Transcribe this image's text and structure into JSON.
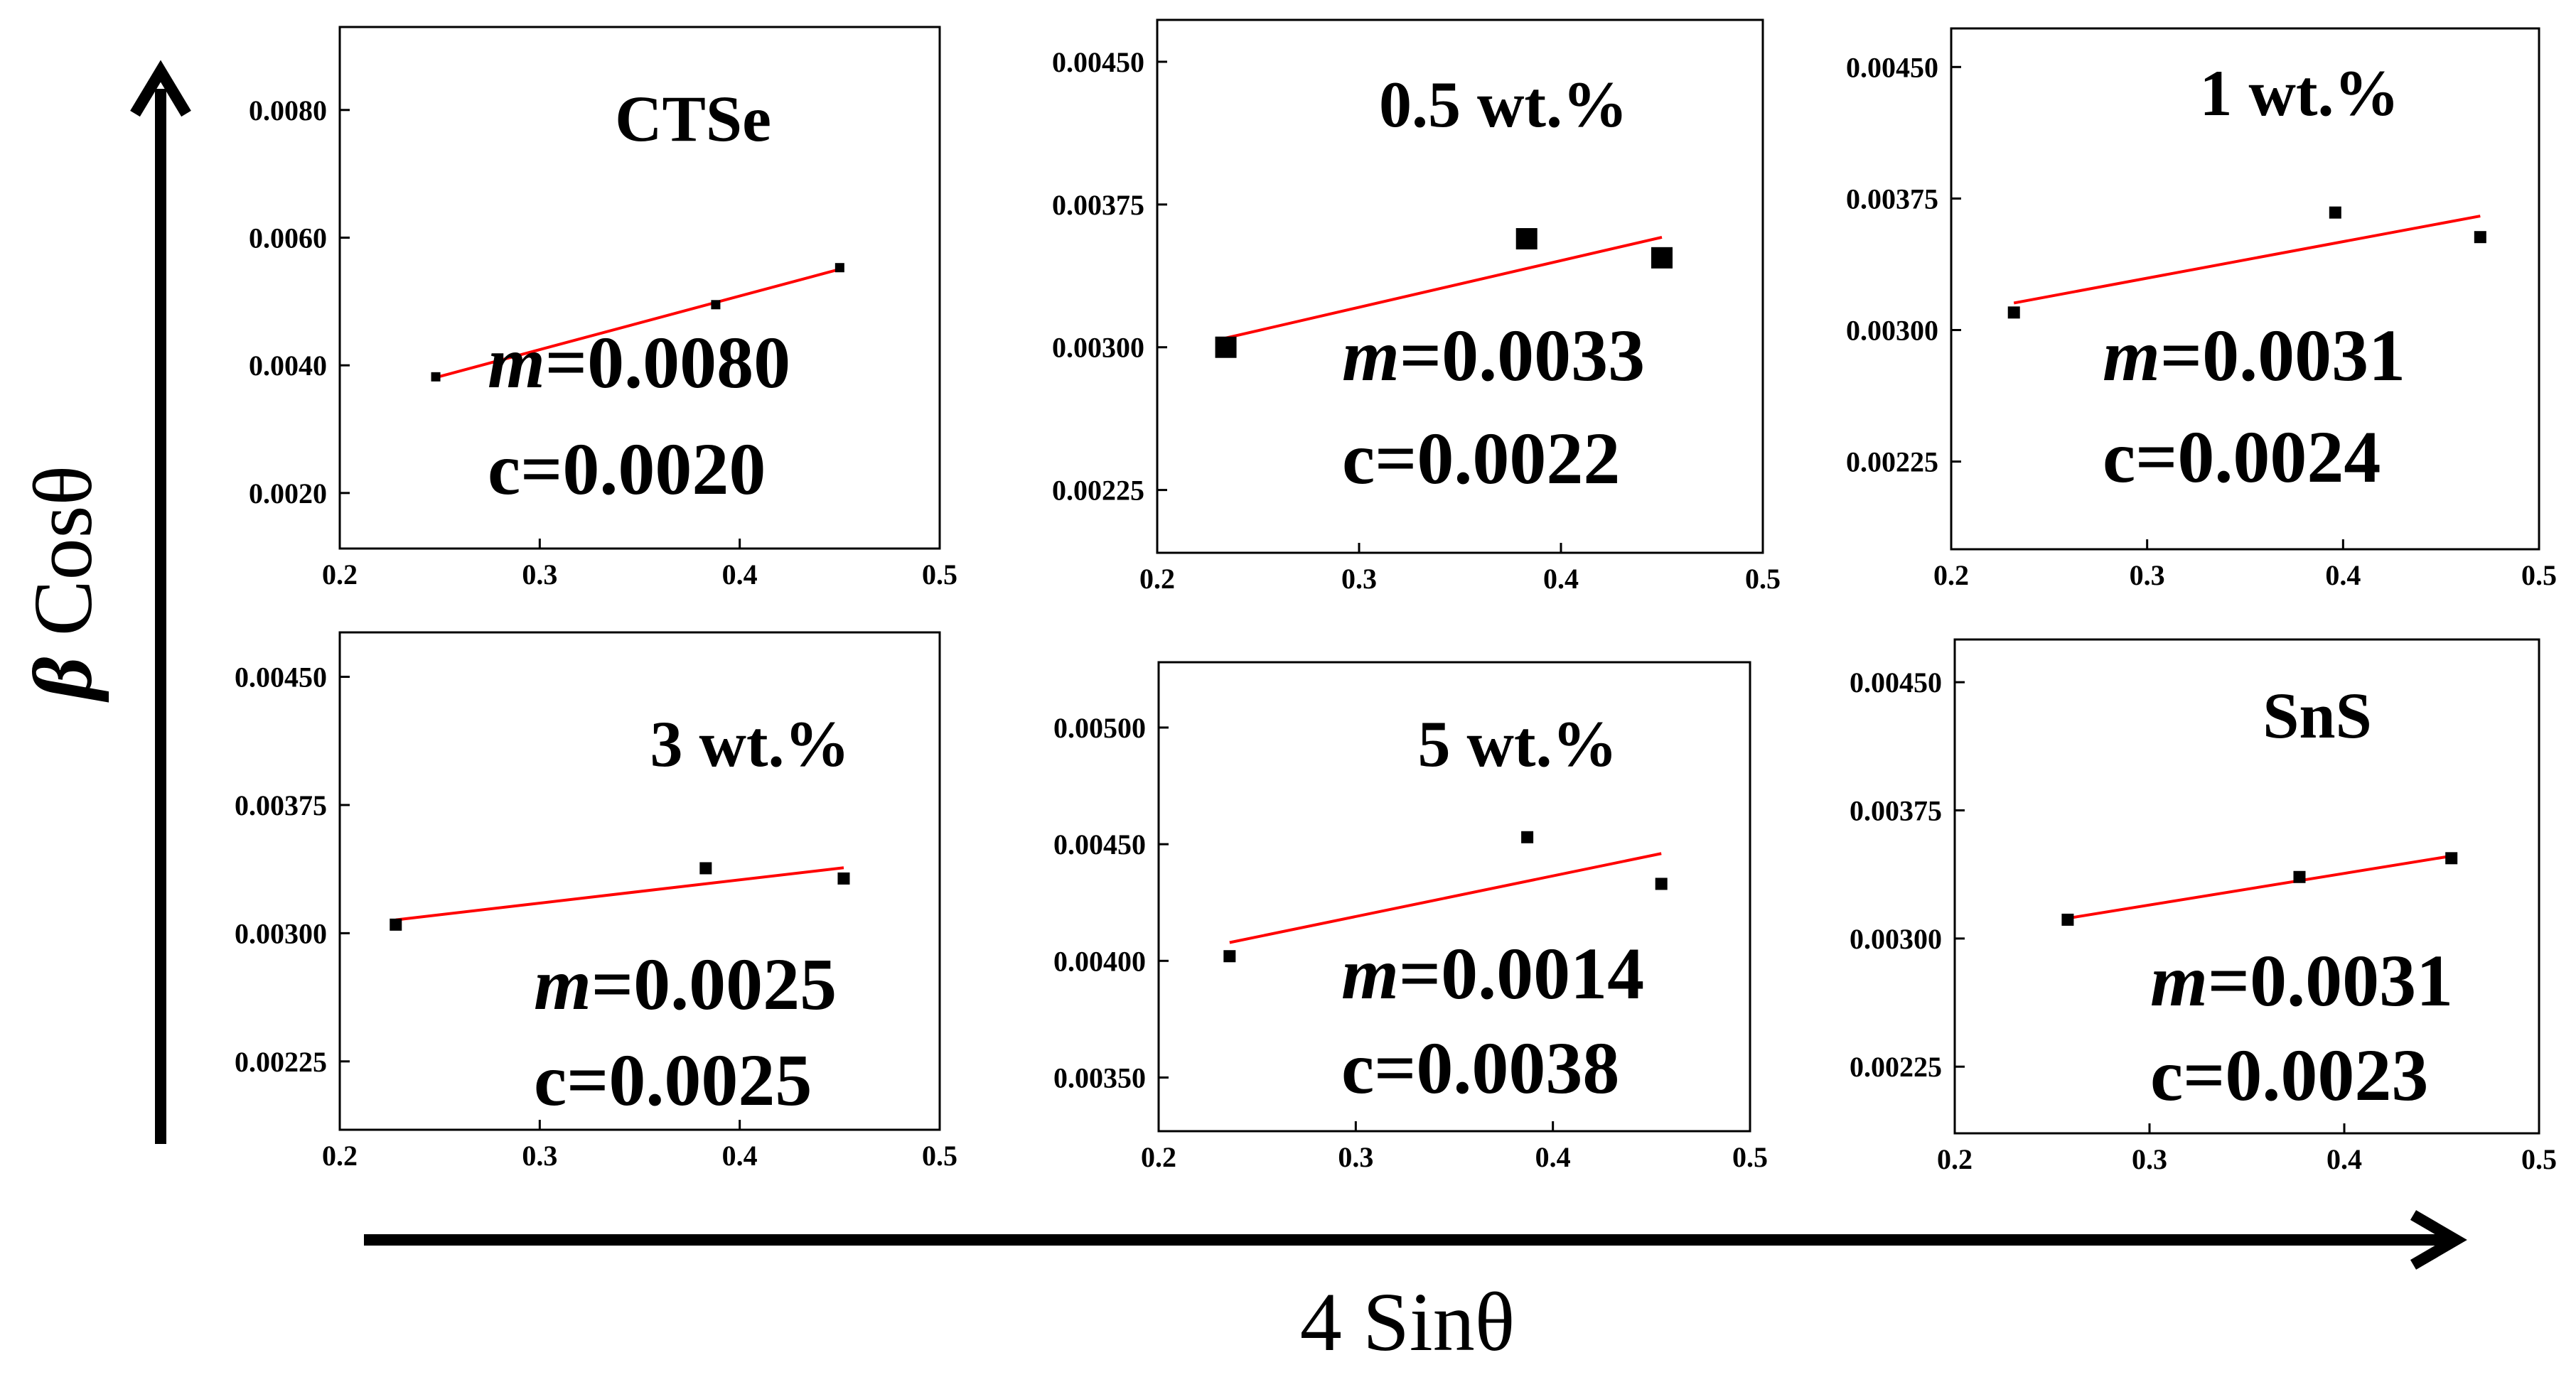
{
  "figure": {
    "xlabel": "4 Sinθ",
    "ylabel_symbol": "β",
    "ylabel_rest": " Cosθ"
  },
  "chart_data": [
    {
      "type": "scatter",
      "title": "CTSe",
      "x": [
        0.248,
        0.388,
        0.45
      ],
      "y": [
        0.00382,
        0.00495,
        0.00553
      ],
      "fit": {
        "m": "m",
        "slope_text": "=0.0080",
        "intercept_text": "c=0.0020"
      },
      "xlim": [
        0.2,
        0.5
      ],
      "ylim": [
        0.00113,
        0.0093
      ],
      "xticks": [
        "0.2",
        "0.3",
        "0.4",
        "0.5"
      ],
      "yticks": [
        "0.0020",
        "0.0040",
        "0.0060",
        "0.0080"
      ]
    },
    {
      "type": "scatter",
      "title": "0.5 wt.%",
      "x": [
        0.234,
        0.383,
        0.45
      ],
      "y": [
        0.003,
        0.00357,
        0.00347
      ],
      "fit": {
        "m": "m",
        "slope_text": "=0.0033",
        "intercept_text": "c=0.0022"
      },
      "xlim": [
        0.2,
        0.5
      ],
      "ylim": [
        0.00192,
        0.00472
      ],
      "xticks": [
        "0.2",
        "0.3",
        "0.4",
        "0.5"
      ],
      "yticks": [
        "0.00225",
        "0.00300",
        "0.00375",
        "0.00450"
      ]
    },
    {
      "type": "scatter",
      "title": "1 wt.%",
      "x": [
        0.232,
        0.396,
        0.47
      ],
      "y": [
        0.0031,
        0.00367,
        0.00353
      ],
      "fit": {
        "m": "m",
        "slope_text": "=0.0031",
        "intercept_text": "c=0.0024"
      },
      "xlim": [
        0.2,
        0.5
      ],
      "ylim": [
        0.00175,
        0.00472
      ],
      "xticks": [
        "0.2",
        "0.3",
        "0.4",
        "0.5"
      ],
      "yticks": [
        "0.00225",
        "0.00300",
        "0.00375",
        "0.00450"
      ]
    },
    {
      "type": "scatter",
      "title": "3 wt.%",
      "x": [
        0.228,
        0.383,
        0.452
      ],
      "y": [
        0.00305,
        0.00338,
        0.00332
      ],
      "fit": {
        "m": "m",
        "slope_text": "=0.0025",
        "intercept_text": "c=0.0025"
      },
      "xlim": [
        0.2,
        0.5
      ],
      "ylim": [
        0.00185,
        0.00476
      ],
      "xticks": [
        "0.2",
        "0.3",
        "0.4",
        "0.5"
      ],
      "yticks": [
        "0.00225",
        "0.00300",
        "0.00375",
        "0.00450"
      ]
    },
    {
      "type": "scatter",
      "title": "5 wt.%",
      "x": [
        0.236,
        0.387,
        0.455
      ],
      "y": [
        0.00402,
        0.00453,
        0.00433
      ],
      "fit": {
        "m": "m",
        "slope_text": "=0.0014",
        "intercept_text": "c=0.0038"
      },
      "xlim": [
        0.2,
        0.5
      ],
      "ylim": [
        0.00327,
        0.00528
      ],
      "xticks": [
        "0.2",
        "0.3",
        "0.4",
        "0.5"
      ],
      "yticks": [
        "0.00350",
        "0.00400",
        "0.00450",
        "0.00500"
      ]
    },
    {
      "type": "scatter",
      "title": "SnS",
      "x": [
        0.258,
        0.377,
        0.455
      ],
      "y": [
        0.00311,
        0.00336,
        0.00347
      ],
      "fit": {
        "m": "m",
        "slope_text": "=0.0031",
        "intercept_text": "c=0.0023"
      },
      "xlim": [
        0.2,
        0.5
      ],
      "ylim": [
        0.00186,
        0.00475
      ],
      "xticks": [
        "0.2",
        "0.3",
        "0.4",
        "0.5"
      ],
      "yticks": [
        "0.00225",
        "0.00300",
        "0.00375",
        "0.00450"
      ]
    }
  ]
}
